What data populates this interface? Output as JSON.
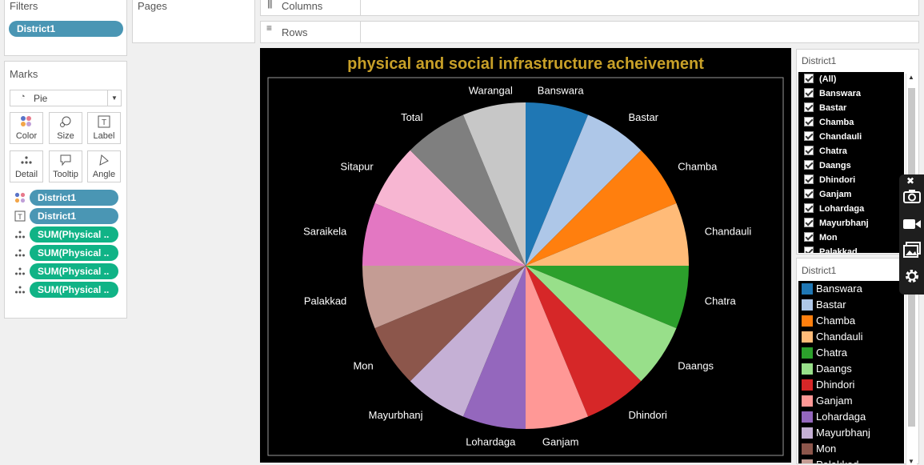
{
  "filters": {
    "title": "Filters",
    "pills": [
      "District1"
    ]
  },
  "pages": {
    "title": "Pages"
  },
  "marks": {
    "title": "Marks",
    "type": "Pie",
    "buttons": [
      "Color",
      "Size",
      "Label",
      "Detail",
      "Tooltip",
      "Angle"
    ],
    "fields": [
      {
        "icon": "color-icon",
        "label": "District1",
        "color": "blue"
      },
      {
        "icon": "text-icon",
        "label": "District1",
        "color": "blue"
      },
      {
        "icon": "detail-icon",
        "label": "SUM(Physical ..",
        "color": "green"
      },
      {
        "icon": "detail-icon",
        "label": "SUM(Physical ..",
        "color": "green"
      },
      {
        "icon": "detail-icon",
        "label": "SUM(Physical ..",
        "color": "green"
      },
      {
        "icon": "detail-icon",
        "label": "SUM(Physical ..",
        "color": "green"
      }
    ]
  },
  "shelves": {
    "columns": "Columns",
    "rows": "Rows"
  },
  "filter_card": {
    "title": "District1",
    "items": [
      "(All)",
      "Banswara",
      "Bastar",
      "Chamba",
      "Chandauli",
      "Chatra",
      "Daangs",
      "Dhindori",
      "Ganjam",
      "Lohardaga",
      "Mayurbhanj",
      "Mon",
      "Palakkad"
    ]
  },
  "legend_card": {
    "title": "District1",
    "items": [
      {
        "label": "Banswara",
        "color": "#1f77b4"
      },
      {
        "label": "Bastar",
        "color": "#aec7e8"
      },
      {
        "label": "Chamba",
        "color": "#ff7f0e"
      },
      {
        "label": "Chandauli",
        "color": "#ffbb78"
      },
      {
        "label": "Chatra",
        "color": "#2ca02c"
      },
      {
        "label": "Daangs",
        "color": "#98df8a"
      },
      {
        "label": "Dhindori",
        "color": "#d62728"
      },
      {
        "label": "Ganjam",
        "color": "#ff9896"
      },
      {
        "label": "Lohardaga",
        "color": "#9467bd"
      },
      {
        "label": "Mayurbhanj",
        "color": "#c5b0d5"
      },
      {
        "label": "Mon",
        "color": "#8c564b"
      },
      {
        "label": "Palakkad",
        "color": "#c49c94"
      }
    ]
  },
  "chart_data": {
    "type": "pie",
    "title": "physical and social infrastructure acheivement",
    "title_color": "#c8a028",
    "background": "#000000",
    "slices": [
      {
        "label": "Banswara",
        "value": 1,
        "color": "#1f77b4"
      },
      {
        "label": "Bastar",
        "value": 1,
        "color": "#aec7e8"
      },
      {
        "label": "Chamba",
        "value": 1,
        "color": "#ff7f0e"
      },
      {
        "label": "Chandauli",
        "value": 1,
        "color": "#ffbb78"
      },
      {
        "label": "Chatra",
        "value": 1,
        "color": "#2ca02c"
      },
      {
        "label": "Daangs",
        "value": 1,
        "color": "#98df8a"
      },
      {
        "label": "Dhindori",
        "value": 1,
        "color": "#d62728"
      },
      {
        "label": "Ganjam",
        "value": 1,
        "color": "#ff9896"
      },
      {
        "label": "Lohardaga",
        "value": 1,
        "color": "#9467bd"
      },
      {
        "label": "Mayurbhanj",
        "value": 1,
        "color": "#c5b0d5"
      },
      {
        "label": "Mon",
        "value": 1,
        "color": "#8c564b"
      },
      {
        "label": "Palakkad",
        "value": 1,
        "color": "#c49c94"
      },
      {
        "label": "Saraikela",
        "value": 1,
        "color": "#e377c2"
      },
      {
        "label": "Sitapur",
        "value": 1,
        "color": "#f7b6d2"
      },
      {
        "label": "Total",
        "value": 1,
        "color": "#7f7f7f"
      },
      {
        "label": "Warangal",
        "value": 1,
        "color": "#c7c7c7"
      }
    ]
  }
}
